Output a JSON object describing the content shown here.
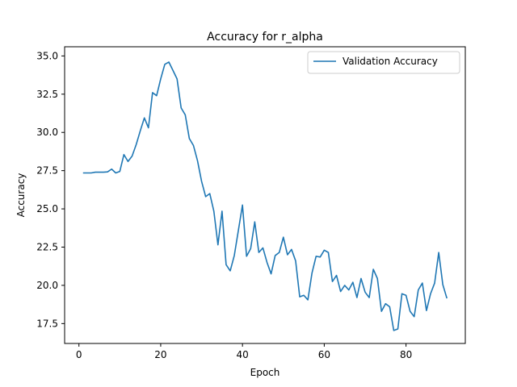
{
  "chart_data": {
    "type": "line",
    "title": "Accuracy for r_alpha",
    "xlabel": "Epoch",
    "ylabel": "Accuracy",
    "xlim": [
      -3.5,
      94.5
    ],
    "ylim": [
      16.2,
      35.6
    ],
    "xticks": [
      0,
      20,
      40,
      60,
      80
    ],
    "xtick_labels": [
      "0",
      "20",
      "40",
      "60",
      "80"
    ],
    "yticks": [
      17.5,
      20.0,
      22.5,
      25.0,
      27.5,
      30.0,
      32.5,
      35.0
    ],
    "ytick_labels": [
      "17.5",
      "20.0",
      "22.5",
      "25.0",
      "27.5",
      "30.0",
      "32.5",
      "35.0"
    ],
    "grid": false,
    "legend_position": "top-right",
    "series": [
      {
        "name": "Validation Accuracy",
        "color": "#1f77b4",
        "x": [
          1,
          2,
          3,
          4,
          5,
          6,
          7,
          8,
          9,
          10,
          11,
          12,
          13,
          14,
          15,
          16,
          17,
          18,
          19,
          20,
          21,
          22,
          23,
          24,
          25,
          26,
          27,
          28,
          29,
          30,
          31,
          32,
          33,
          34,
          35,
          36,
          37,
          38,
          39,
          40,
          41,
          42,
          43,
          44,
          45,
          46,
          47,
          48,
          49,
          50,
          51,
          52,
          53,
          54,
          55,
          56,
          57,
          58,
          59,
          60,
          61,
          62,
          63,
          64,
          65,
          66,
          67,
          68,
          69,
          70,
          71,
          72,
          73,
          74,
          75,
          76,
          77,
          78,
          79,
          80,
          81,
          82,
          83,
          84,
          85,
          86,
          87,
          88,
          89,
          90
        ],
        "y": [
          27.35,
          27.35,
          27.35,
          27.4,
          27.4,
          27.4,
          27.42,
          27.6,
          27.35,
          27.45,
          28.55,
          28.1,
          28.45,
          29.2,
          30.1,
          30.95,
          30.3,
          32.6,
          32.4,
          33.5,
          34.45,
          34.6,
          34.05,
          33.5,
          31.6,
          31.15,
          29.6,
          29.15,
          28.15,
          26.8,
          25.8,
          26.0,
          24.85,
          22.65,
          24.85,
          21.35,
          20.95,
          21.95,
          23.6,
          25.25,
          21.9,
          22.4,
          24.15,
          22.15,
          22.45,
          21.5,
          20.75,
          21.95,
          22.15,
          23.15,
          22.0,
          22.35,
          21.6,
          19.25,
          19.35,
          19.05,
          20.8,
          21.9,
          21.85,
          22.3,
          22.15,
          20.25,
          20.65,
          19.6,
          20.0,
          19.7,
          20.2,
          19.2,
          20.45,
          19.55,
          19.2,
          21.05,
          20.45,
          18.3,
          18.8,
          18.6,
          17.05,
          17.15,
          19.45,
          19.35,
          18.3,
          17.95,
          19.7,
          20.15,
          18.35,
          19.45,
          20.15,
          22.15,
          20.05,
          19.15
        ]
      }
    ]
  }
}
